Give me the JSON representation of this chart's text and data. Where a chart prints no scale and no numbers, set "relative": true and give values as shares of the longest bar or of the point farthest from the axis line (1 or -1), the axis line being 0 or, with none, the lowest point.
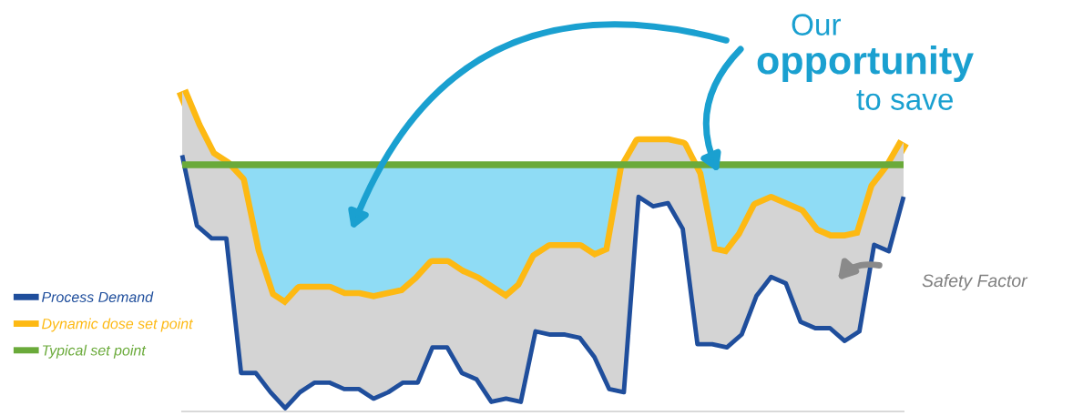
{
  "chart_data": {
    "type": "line",
    "relative": true,
    "legend": "left",
    "categories": [
      null,
      null,
      null,
      null,
      null,
      null,
      null,
      null,
      null,
      null,
      null,
      null,
      null,
      null,
      null,
      null,
      null,
      null,
      null,
      null,
      null,
      null,
      null,
      null,
      null,
      null,
      null,
      null,
      null,
      null,
      null,
      null,
      null,
      null,
      null,
      null,
      null,
      null,
      null,
      null,
      null,
      null,
      null,
      null,
      null,
      null,
      null,
      null,
      null,
      null
    ],
    "series": [
      {
        "name": "Process Demand",
        "color": "#1f4e9c",
        "values": [
          0.8,
          0.58,
          0.54,
          0.54,
          0.12,
          0.12,
          0.06,
          0.01,
          0.06,
          0.09,
          0.09,
          0.07,
          0.07,
          0.04,
          0.06,
          0.09,
          0.09,
          0.2,
          0.2,
          0.12,
          0.1,
          0.03,
          0.04,
          0.03,
          0.25,
          0.24,
          0.24,
          0.23,
          0.17,
          0.07,
          0.06,
          0.67,
          0.64,
          0.65,
          0.57,
          0.21,
          0.21,
          0.2,
          0.24,
          0.36,
          0.42,
          0.4,
          0.28,
          0.26,
          0.26,
          0.22,
          0.25,
          0.52,
          0.5,
          0.67
        ]
      },
      {
        "name": "Dynamic dose set point",
        "color": "#fdb913",
        "values": [
          1,
          0.89,
          0.8,
          0.77,
          0.72,
          0.5,
          0.36,
          0.33,
          0.38,
          0.38,
          0.38,
          0.36,
          0.36,
          0.35,
          0.36,
          0.37,
          0.41,
          0.46,
          0.46,
          0.43,
          0.41,
          0.38,
          0.35,
          0.39,
          0.48,
          0.51,
          0.51,
          0.51,
          0.48,
          0.5,
          0.76,
          0.84,
          0.84,
          0.84,
          0.83,
          0.74,
          0.5,
          0.49,
          0.55,
          0.64,
          0.66,
          0.64,
          0.62,
          0.56,
          0.54,
          0.54,
          0.55,
          0.7,
          0.76,
          0.84
        ],
        "lower": [
          0.8,
          0.58,
          0.54,
          0.54,
          0.12,
          0.12,
          0.06,
          0.01,
          0.06,
          0.09,
          0.09,
          0.07,
          0.07,
          0.04,
          0.06,
          0.09,
          0.09,
          0.2,
          0.2,
          0.12,
          0.1,
          0.03,
          0.04,
          0.03,
          0.25,
          0.24,
          0.24,
          0.23,
          0.17,
          0.07,
          0.06,
          0.67,
          0.64,
          0.65,
          0.57,
          0.21,
          0.21,
          0.2,
          0.24,
          0.36,
          0.42,
          0.4,
          0.28,
          0.26,
          0.26,
          0.22,
          0.25,
          0.52,
          0.5,
          0.67
        ],
        "upper": [
          1,
          0.89,
          0.8,
          0.77,
          0.72,
          0.5,
          0.36,
          0.33,
          0.38,
          0.38,
          0.38,
          0.36,
          0.36,
          0.35,
          0.36,
          0.37,
          0.41,
          0.46,
          0.46,
          0.43,
          0.41,
          0.38,
          0.35,
          0.39,
          0.48,
          0.51,
          0.51,
          0.51,
          0.48,
          0.5,
          0.76,
          0.84,
          0.84,
          0.84,
          0.83,
          0.74,
          0.5,
          0.49,
          0.55,
          0.64,
          0.66,
          0.64,
          0.62,
          0.56,
          0.54,
          0.54,
          0.55,
          0.7,
          0.76,
          0.84
        ]
      },
      {
        "name": "Typical set point",
        "color": "#6aaa3a",
        "values": [
          0.77,
          0.77,
          0.77,
          0.77,
          0.77,
          0.77,
          0.77,
          0.77,
          0.77,
          0.77,
          0.77,
          0.77,
          0.77,
          0.77,
          0.77,
          0.77,
          0.77,
          0.77,
          0.77,
          0.77,
          0.77,
          0.77,
          0.77,
          0.77,
          0.77,
          0.77,
          0.77,
          0.77,
          0.77,
          0.77,
          0.77,
          0.77,
          0.77,
          0.77,
          0.77,
          0.77,
          0.77,
          0.77,
          0.77,
          0.77,
          0.77,
          0.77,
          0.77,
          0.77,
          0.77,
          0.77,
          0.77,
          0.77,
          0.77,
          0.77
        ]
      }
    ],
    "annotations": [
      "Our",
      "opportunity",
      "to save",
      "Safety Factor"
    ]
  }
}
